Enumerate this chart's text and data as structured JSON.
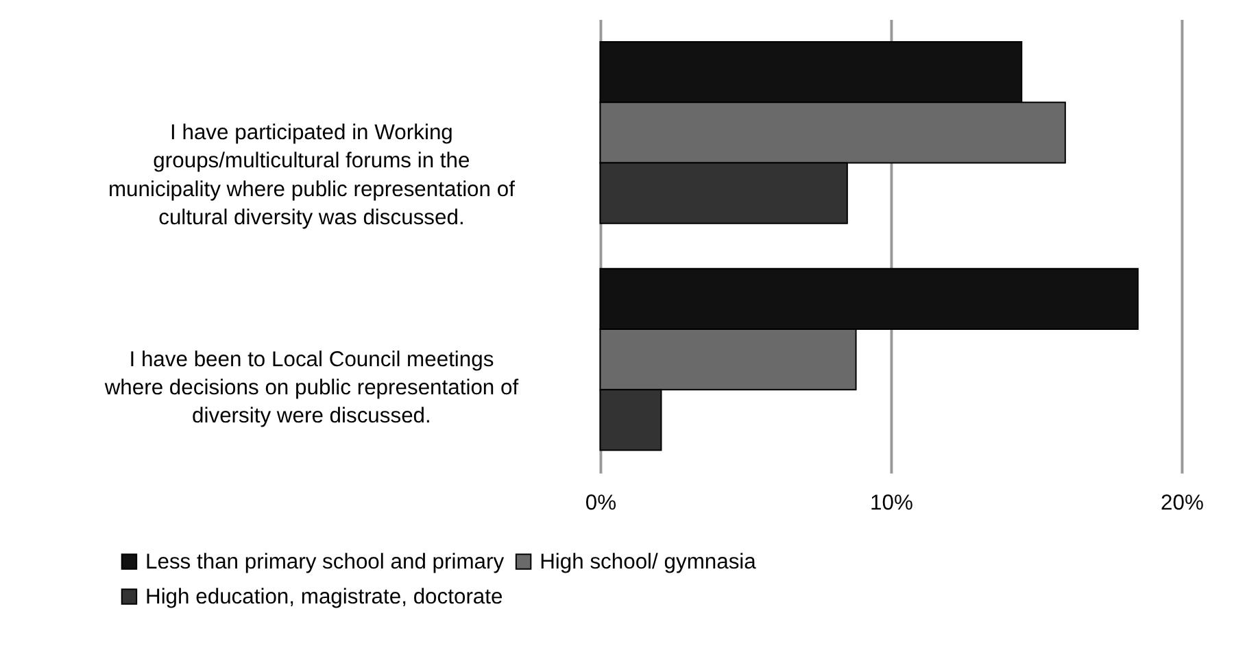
{
  "chart_data": {
    "type": "bar",
    "orientation": "horizontal",
    "categories": [
      "I have participated in Working\ngroups/multicultural forums in the\nmunicipality where public representation of\ncultural diversity was discussed.",
      "I have been to Local Council meetings\nwhere decisions on public representation of\ndiversity were discussed."
    ],
    "series": [
      {
        "name": "Less than primary school and primary",
        "color": "#111111",
        "values": [
          14.5,
          18.5
        ]
      },
      {
        "name": "High school/ gymnasia",
        "color": "#6a6a6a",
        "values": [
          16.0,
          8.8
        ]
      },
      {
        "name": "High education, magistrate, doctorate",
        "color": "#333333",
        "values": [
          8.5,
          2.1
        ]
      }
    ],
    "xlim": [
      0,
      20
    ],
    "xticks": [
      {
        "value": 0,
        "label": "0%"
      },
      {
        "value": 10,
        "label": "10%"
      },
      {
        "value": 20,
        "label": "20%"
      }
    ],
    "grid": "x",
    "legend": "bottom"
  }
}
